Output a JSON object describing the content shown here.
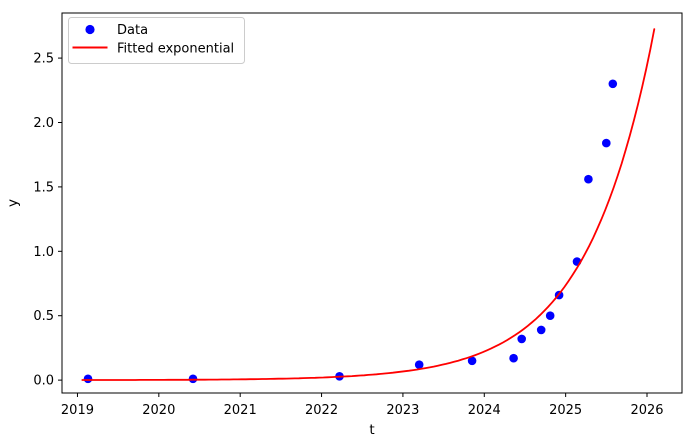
{
  "chart_data": {
    "type": "scatter",
    "title": "",
    "xlabel": "t",
    "ylabel": "y",
    "xlim": [
      2018.81,
      2026.43
    ],
    "ylim": [
      -0.1,
      2.85
    ],
    "x_tick_values": [
      2019,
      2020,
      2021,
      2022,
      2023,
      2024,
      2025,
      2026
    ],
    "x_tick_labels": [
      "2019",
      "2020",
      "2021",
      "2022",
      "2023",
      "2024",
      "2025",
      "2026"
    ],
    "y_tick_values": [
      0.0,
      0.5,
      1.0,
      1.5,
      2.0,
      2.5
    ],
    "y_tick_labels": [
      "0.0",
      "0.5",
      "1.0",
      "1.5",
      "2.0",
      "2.5"
    ],
    "grid": false,
    "legend": {
      "position": "upper-left",
      "entries": [
        {
          "label": "Data",
          "marker": "dot",
          "color": "#0000ff"
        },
        {
          "label": "Fitted exponential",
          "marker": "line",
          "color": "#ff0000"
        }
      ]
    },
    "series": [
      {
        "name": "Data",
        "type": "scatter",
        "color": "#0000ff",
        "points": [
          [
            2019.13,
            0.01
          ],
          [
            2020.42,
            0.01
          ],
          [
            2022.22,
            0.03
          ],
          [
            2023.2,
            0.12
          ],
          [
            2023.85,
            0.15
          ],
          [
            2024.36,
            0.17
          ],
          [
            2024.46,
            0.32
          ],
          [
            2024.7,
            0.39
          ],
          [
            2024.81,
            0.5
          ],
          [
            2024.92,
            0.66
          ],
          [
            2025.14,
            0.92
          ],
          [
            2025.28,
            1.56
          ],
          [
            2025.5,
            1.84
          ],
          [
            2025.58,
            2.3
          ]
        ]
      },
      {
        "name": "Fitted exponential",
        "type": "line",
        "color": "#ff0000",
        "fit": {
          "model": "y = a * exp(b * (t - t0))",
          "a": 0.00055,
          "b": 1.2,
          "t0": 2019,
          "t_range": [
            2019.06,
            2026.09
          ],
          "y_end": 2.74
        }
      }
    ],
    "axis_color": "#000000",
    "legend_border_color": "#cccccc",
    "background_color": "#ffffff"
  }
}
